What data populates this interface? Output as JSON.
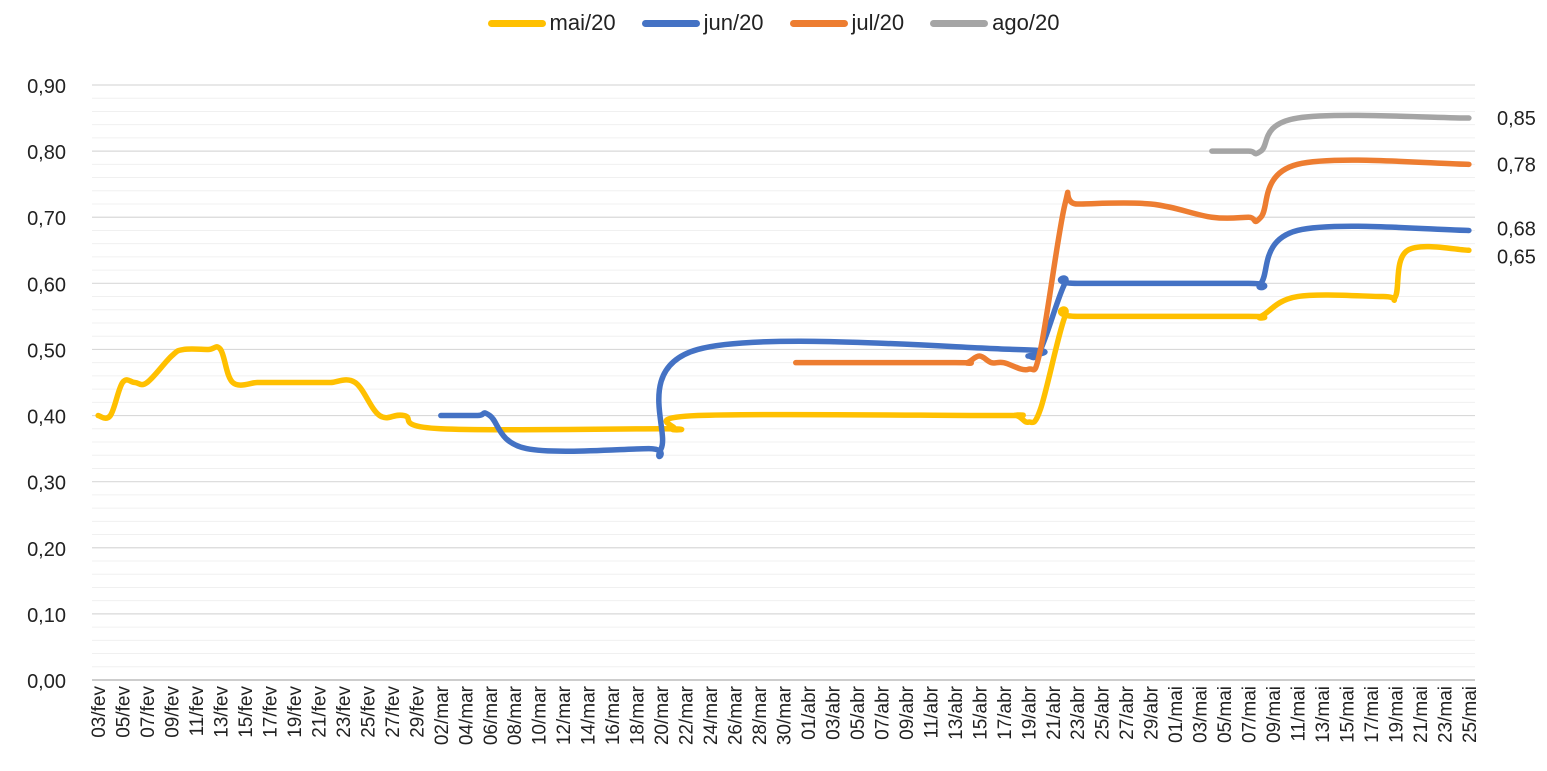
{
  "chart_data": {
    "type": "line",
    "title": "",
    "xlabel": "",
    "ylabel": "",
    "ylim": [
      0,
      0.9
    ],
    "yticks": [
      "0,00",
      "0,10",
      "0,20",
      "0,30",
      "0,40",
      "0,50",
      "0,60",
      "0,70",
      "0,80",
      "0,90"
    ],
    "grid": true,
    "minor_grid": true,
    "legend_position": "top",
    "x_tick_labels": [
      "03/fev",
      "05/fev",
      "07/fev",
      "09/fev",
      "11/fev",
      "13/fev",
      "15/fev",
      "17/fev",
      "19/fev",
      "21/fev",
      "23/fev",
      "25/fev",
      "27/fev",
      "29/fev",
      "02/mar",
      "04/mar",
      "06/mar",
      "08/mar",
      "10/mar",
      "12/mar",
      "14/mar",
      "16/mar",
      "18/mar",
      "20/mar",
      "22/mar",
      "24/mar",
      "26/mar",
      "28/mar",
      "30/mar",
      "01/abr",
      "03/abr",
      "05/abr",
      "07/abr",
      "09/abr",
      "11/abr",
      "13/abr",
      "15/abr",
      "17/abr",
      "19/abr",
      "21/abr",
      "23/abr",
      "25/abr",
      "27/abr",
      "29/abr",
      "01/mai",
      "03/mai",
      "05/mai",
      "07/mai",
      "09/mai",
      "11/mai",
      "13/mai",
      "15/mai",
      "17/mai",
      "19/mai",
      "21/mai",
      "23/mai",
      "25/mai"
    ],
    "series": [
      {
        "name": "mai/20",
        "color": "#FFC000",
        "end_label": "0,65",
        "points": [
          [
            "03/fev",
            0.4
          ],
          [
            "04/fev",
            0.4
          ],
          [
            "05/fev",
            0.45
          ],
          [
            "06/fev",
            0.45
          ],
          [
            "07/fev",
            0.45
          ],
          [
            "09/fev",
            0.49
          ],
          [
            "10/fev",
            0.5
          ],
          [
            "12/fev",
            0.5
          ],
          [
            "13/fev",
            0.5
          ],
          [
            "14/fev",
            0.45
          ],
          [
            "16/fev",
            0.45
          ],
          [
            "17/fev",
            0.45
          ],
          [
            "21/fev",
            0.45
          ],
          [
            "22/fev",
            0.45
          ],
          [
            "24/fev",
            0.45
          ],
          [
            "26/fev",
            0.4
          ],
          [
            "28/fev",
            0.4
          ],
          [
            "02/mar",
            0.38
          ],
          [
            "20/mar",
            0.38
          ],
          [
            "21/mar",
            0.38
          ],
          [
            "23/mar",
            0.4
          ],
          [
            "16/abr",
            0.4
          ],
          [
            "18/abr",
            0.4
          ],
          [
            "19/abr",
            0.39
          ],
          [
            "20/abr",
            0.41
          ],
          [
            "22/abr",
            0.55
          ],
          [
            "23/abr",
            0.55
          ],
          [
            "07/mai",
            0.55
          ],
          [
            "08/mai",
            0.55
          ],
          [
            "11/mai",
            0.58
          ],
          [
            "18/mai",
            0.58
          ],
          [
            "19/mai",
            0.58
          ],
          [
            "20/mai",
            0.65
          ],
          [
            "25/mai",
            0.65
          ]
        ]
      },
      {
        "name": "jun/20",
        "color": "#4472C4",
        "end_label": "0,68",
        "points": [
          [
            "02/mar",
            0.4
          ],
          [
            "05/mar",
            0.4
          ],
          [
            "06/mar",
            0.4
          ],
          [
            "09/mar",
            0.35
          ],
          [
            "19/mar",
            0.35
          ],
          [
            "20/mar",
            0.35
          ],
          [
            "23/mar",
            0.5
          ],
          [
            "18/abr",
            0.5
          ],
          [
            "19/abr",
            0.49
          ],
          [
            "20/abr",
            0.5
          ],
          [
            "22/abr",
            0.6
          ],
          [
            "23/abr",
            0.6
          ],
          [
            "07/mai",
            0.6
          ],
          [
            "08/mai",
            0.6
          ],
          [
            "11/mai",
            0.68
          ],
          [
            "25/mai",
            0.68
          ]
        ]
      },
      {
        "name": "jul/20",
        "color": "#ED7D31",
        "end_label": "0,78",
        "points": [
          [
            "31/mar",
            0.48
          ],
          [
            "13/abr",
            0.48
          ],
          [
            "14/abr",
            0.48
          ],
          [
            "15/abr",
            0.49
          ],
          [
            "16/abr",
            0.48
          ],
          [
            "17/abr",
            0.48
          ],
          [
            "19/abr",
            0.47
          ],
          [
            "20/abr",
            0.5
          ],
          [
            "22/abr",
            0.72
          ],
          [
            "23/abr",
            0.72
          ],
          [
            "29/abr",
            0.72
          ],
          [
            "04/mai",
            0.7
          ],
          [
            "07/mai",
            0.7
          ],
          [
            "08/mai",
            0.7
          ],
          [
            "11/mai",
            0.78
          ],
          [
            "25/mai",
            0.78
          ]
        ]
      },
      {
        "name": "ago/20",
        "color": "#A5A5A5",
        "end_label": "0,85",
        "points": [
          [
            "04/mai",
            0.8
          ],
          [
            "07/mai",
            0.8
          ],
          [
            "08/mai",
            0.8
          ],
          [
            "11/mai",
            0.85
          ],
          [
            "25/mai",
            0.85
          ]
        ]
      }
    ]
  }
}
